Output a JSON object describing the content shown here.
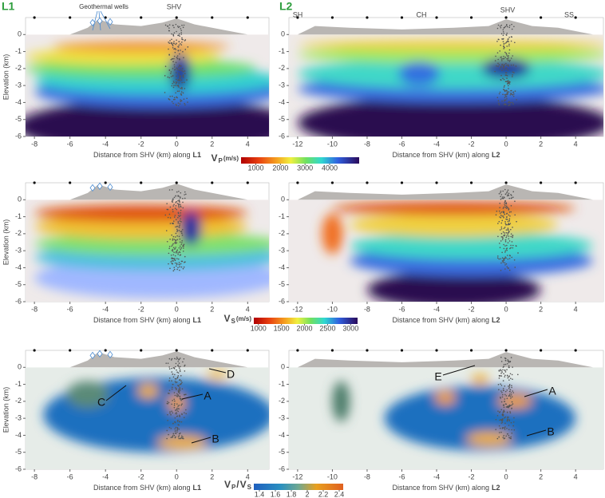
{
  "figure": {
    "panel_labels": [
      "L1",
      "L2"
    ],
    "y_label": "Elevation (km)",
    "ylim": [
      -6,
      1
    ],
    "yticks": [
      0,
      -1,
      -2,
      -3,
      -4,
      -5,
      -6
    ],
    "panels": [
      {
        "x_label": "Distance from SHV (km) along",
        "x_label_line": "L1",
        "xlim": [
          -8.5,
          5.2
        ],
        "xticks": [
          -8,
          -6,
          -4,
          -2,
          0,
          2,
          4
        ],
        "annotations": [
          "Geothermal wells",
          "SHV"
        ]
      },
      {
        "x_label": "Distance from SHV (km) along",
        "x_label_line": "L2",
        "xlim": [
          -12.5,
          5.6
        ],
        "xticks": [
          -12,
          -10,
          -8,
          -6,
          -4,
          -2,
          0,
          2,
          4
        ],
        "annotations": [
          "SH",
          "CH",
          "SHV",
          "SS"
        ]
      }
    ],
    "colorbars": [
      {
        "label": [
          {
            "text": "V"
          },
          {
            "sub": "P"
          },
          {
            "text": "(m/s)"
          }
        ],
        "lim": [
          400,
          5200
        ],
        "ticks": [
          1000,
          2000,
          3000,
          4000
        ]
      },
      {
        "label": [
          {
            "text": "V"
          },
          {
            "sub": "S"
          },
          {
            "text": "(m/s)"
          }
        ],
        "lim": [
          900,
          3150
        ],
        "ticks": [
          1000,
          1500,
          2000,
          2500,
          3000
        ]
      },
      {
        "label": [
          {
            "text": "V"
          },
          {
            "sub": "P"
          },
          {
            "text": "/"
          },
          {
            "text": "V"
          },
          {
            "sub": "S"
          }
        ],
        "lim": [
          1.33,
          2.45
        ],
        "ticks": [
          1.4,
          1.6,
          1.8,
          2,
          2.2,
          2.4
        ]
      }
    ],
    "features": {
      "left": [
        "C",
        "A",
        "B",
        "D"
      ],
      "right": [
        "E",
        "A",
        "B"
      ]
    }
  }
}
